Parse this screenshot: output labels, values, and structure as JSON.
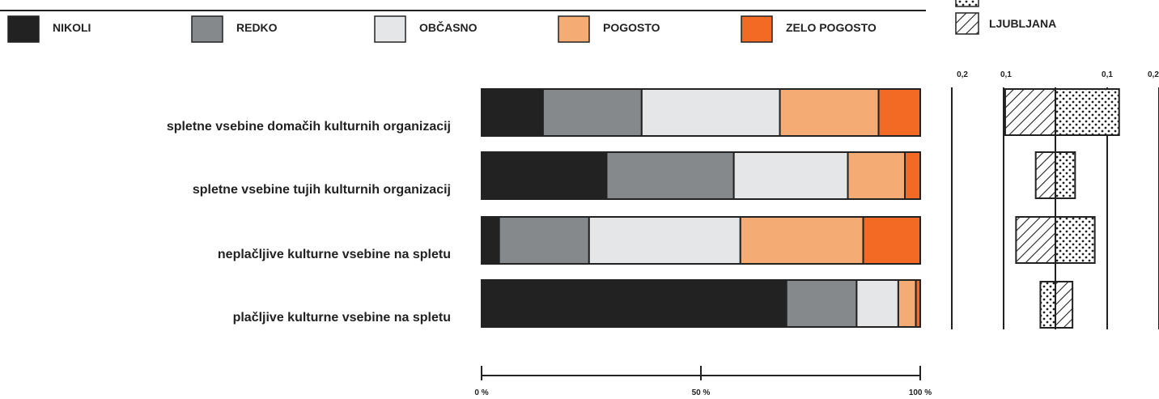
{
  "legend": {
    "items": [
      {
        "label": "NIKOLI",
        "color": "#222222"
      },
      {
        "label": "REDKO",
        "color": "#86898b"
      },
      {
        "label": "OBČASNO",
        "color": "#e5e6e8"
      },
      {
        "label": "POGOSTO",
        "color": "#f5ac74"
      },
      {
        "label": "ZELO POGOSTO",
        "color": "#f26a24"
      }
    ],
    "region_label": "LJUBLJANA"
  },
  "chart_data": [
    {
      "type": "bar",
      "orientation": "horizontal",
      "stacked": true,
      "categories": [
        "spletne vsebine domačih kulturnih organizacij",
        "spletne vsebine tujih kulturnih organizacij",
        "neplačljive kulturne vsebine na spletu",
        "plačljive kulturne vsebine na spletu"
      ],
      "series": [
        {
          "name": "NIKOLI",
          "values": [
            14,
            28.5,
            4,
            69.5
          ]
        },
        {
          "name": "REDKO",
          "values": [
            22.5,
            29,
            20.5,
            16
          ]
        },
        {
          "name": "OBČASNO",
          "values": [
            31.5,
            26,
            34.5,
            9.5
          ]
        },
        {
          "name": "POGOSTO",
          "values": [
            22.5,
            13,
            28,
            4
          ]
        },
        {
          "name": "ZELO POGOSTO",
          "values": [
            9.5,
            3.5,
            13,
            1
          ]
        }
      ],
      "xlim": [
        0,
        100
      ],
      "xticks": [
        "0 %",
        "50 %",
        "100 %"
      ]
    },
    {
      "type": "bar",
      "orientation": "horizontal",
      "diverging": true,
      "categories": [
        "spletne vsebine domačih kulturnih organizacij",
        "spletne vsebine tujih kulturnih organizacij",
        "neplačljive kulturne vsebine na spletu",
        "plačljive kulturne vsebine na spletu"
      ],
      "values": [
        {
          "left": -0.097,
          "right": 0.123
        },
        {
          "left": -0.038,
          "right": 0.038
        },
        {
          "left": -0.076,
          "right": 0.076
        },
        {
          "left": 0.033,
          "right": -0.029
        }
      ],
      "ticks": [
        "0,2",
        "0,1",
        "0,1",
        "0,2"
      ],
      "tick_values": [
        -0.2,
        -0.1,
        0.1,
        0.2
      ]
    }
  ]
}
